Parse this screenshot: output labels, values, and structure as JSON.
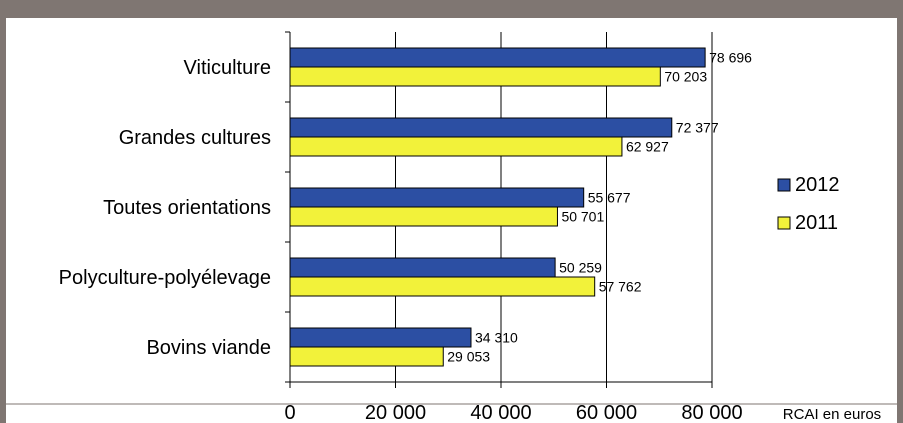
{
  "chart_data": {
    "type": "bar",
    "orientation": "horizontal",
    "categories": [
      "Viticulture",
      "Grandes cultures",
      "Toutes orientations",
      "Polyculture-polyélevage",
      "Bovins viande"
    ],
    "series": [
      {
        "name": "2012",
        "values": [
          78696,
          72377,
          55677,
          50259,
          34310
        ],
        "value_labels": [
          "78 696",
          "72 377",
          "55 677",
          "50 259",
          "34 310"
        ],
        "color": "#2C4FA3"
      },
      {
        "name": "2011",
        "values": [
          70203,
          62927,
          50701,
          57762,
          29053
        ],
        "value_labels": [
          "70 203",
          "62 927",
          "50 701",
          "57 762",
          "29 053"
        ],
        "color": "#F2F23A"
      }
    ],
    "xlim": [
      0,
      80000
    ],
    "x_ticks": [
      0,
      20000,
      40000,
      60000,
      80000
    ],
    "x_tick_labels": [
      "0",
      "20 000",
      "40 000",
      "60 000",
      "80 000"
    ],
    "xlabel": "RCAI en euros",
    "grid": "vertical",
    "legend_position": "right"
  },
  "colors": {
    "header_bar": "#7F7672",
    "frame_border": "#7F7672",
    "bar_stroke": "#000000"
  }
}
